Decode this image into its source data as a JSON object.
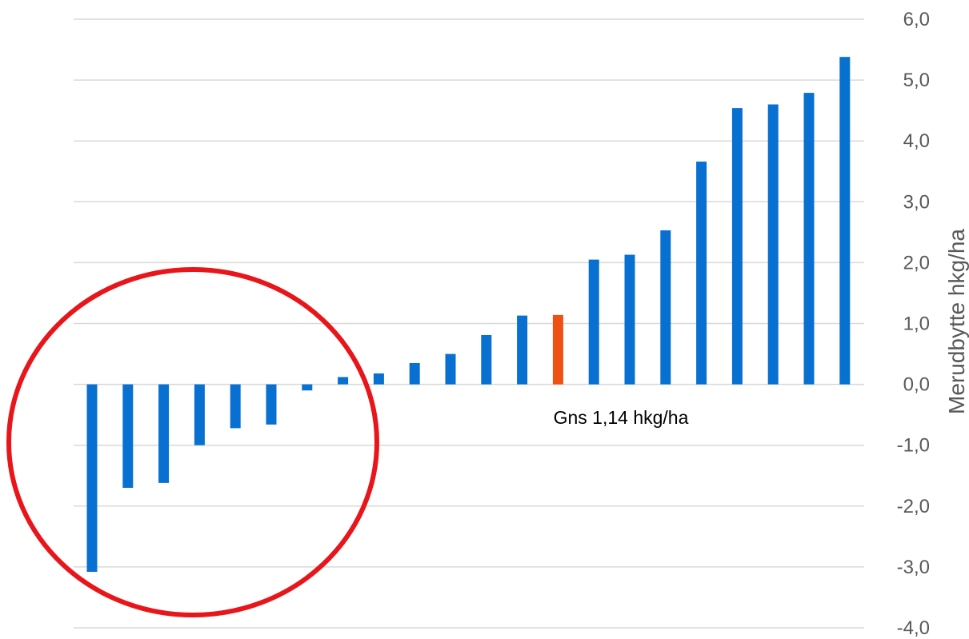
{
  "chart_data": {
    "type": "bar",
    "values": [
      -3.08,
      -1.7,
      -1.62,
      -1.0,
      -0.72,
      -0.66,
      -0.1,
      0.12,
      0.18,
      0.35,
      0.5,
      0.81,
      1.13,
      1.14,
      2.05,
      2.13,
      2.53,
      3.66,
      4.54,
      4.6,
      4.79,
      5.38
    ],
    "highlight_index": 13,
    "ylabel": "Merudbytte hkg/ha",
    "ylim": [
      -4.0,
      6.0
    ],
    "yticks": [
      6.0,
      5.0,
      4.0,
      3.0,
      2.0,
      1.0,
      0.0,
      -1.0,
      -2.0,
      -3.0,
      -4.0
    ],
    "ytick_labels": [
      "6,0",
      "5,0",
      "4,0",
      "3,0",
      "2,0",
      "1,0",
      "0,0",
      "-1,0",
      "-2,0",
      "-3,0",
      "-4,0"
    ],
    "annotation": "Gns 1,14 hkg/ha",
    "grid": true,
    "y_axis_side": "right",
    "colors": {
      "bar": "#0870D0",
      "highlight": "#F05014",
      "grid": "#D9D9D9",
      "circle": "#E8161B"
    },
    "callout_shape": "ellipse around the negative bars"
  }
}
